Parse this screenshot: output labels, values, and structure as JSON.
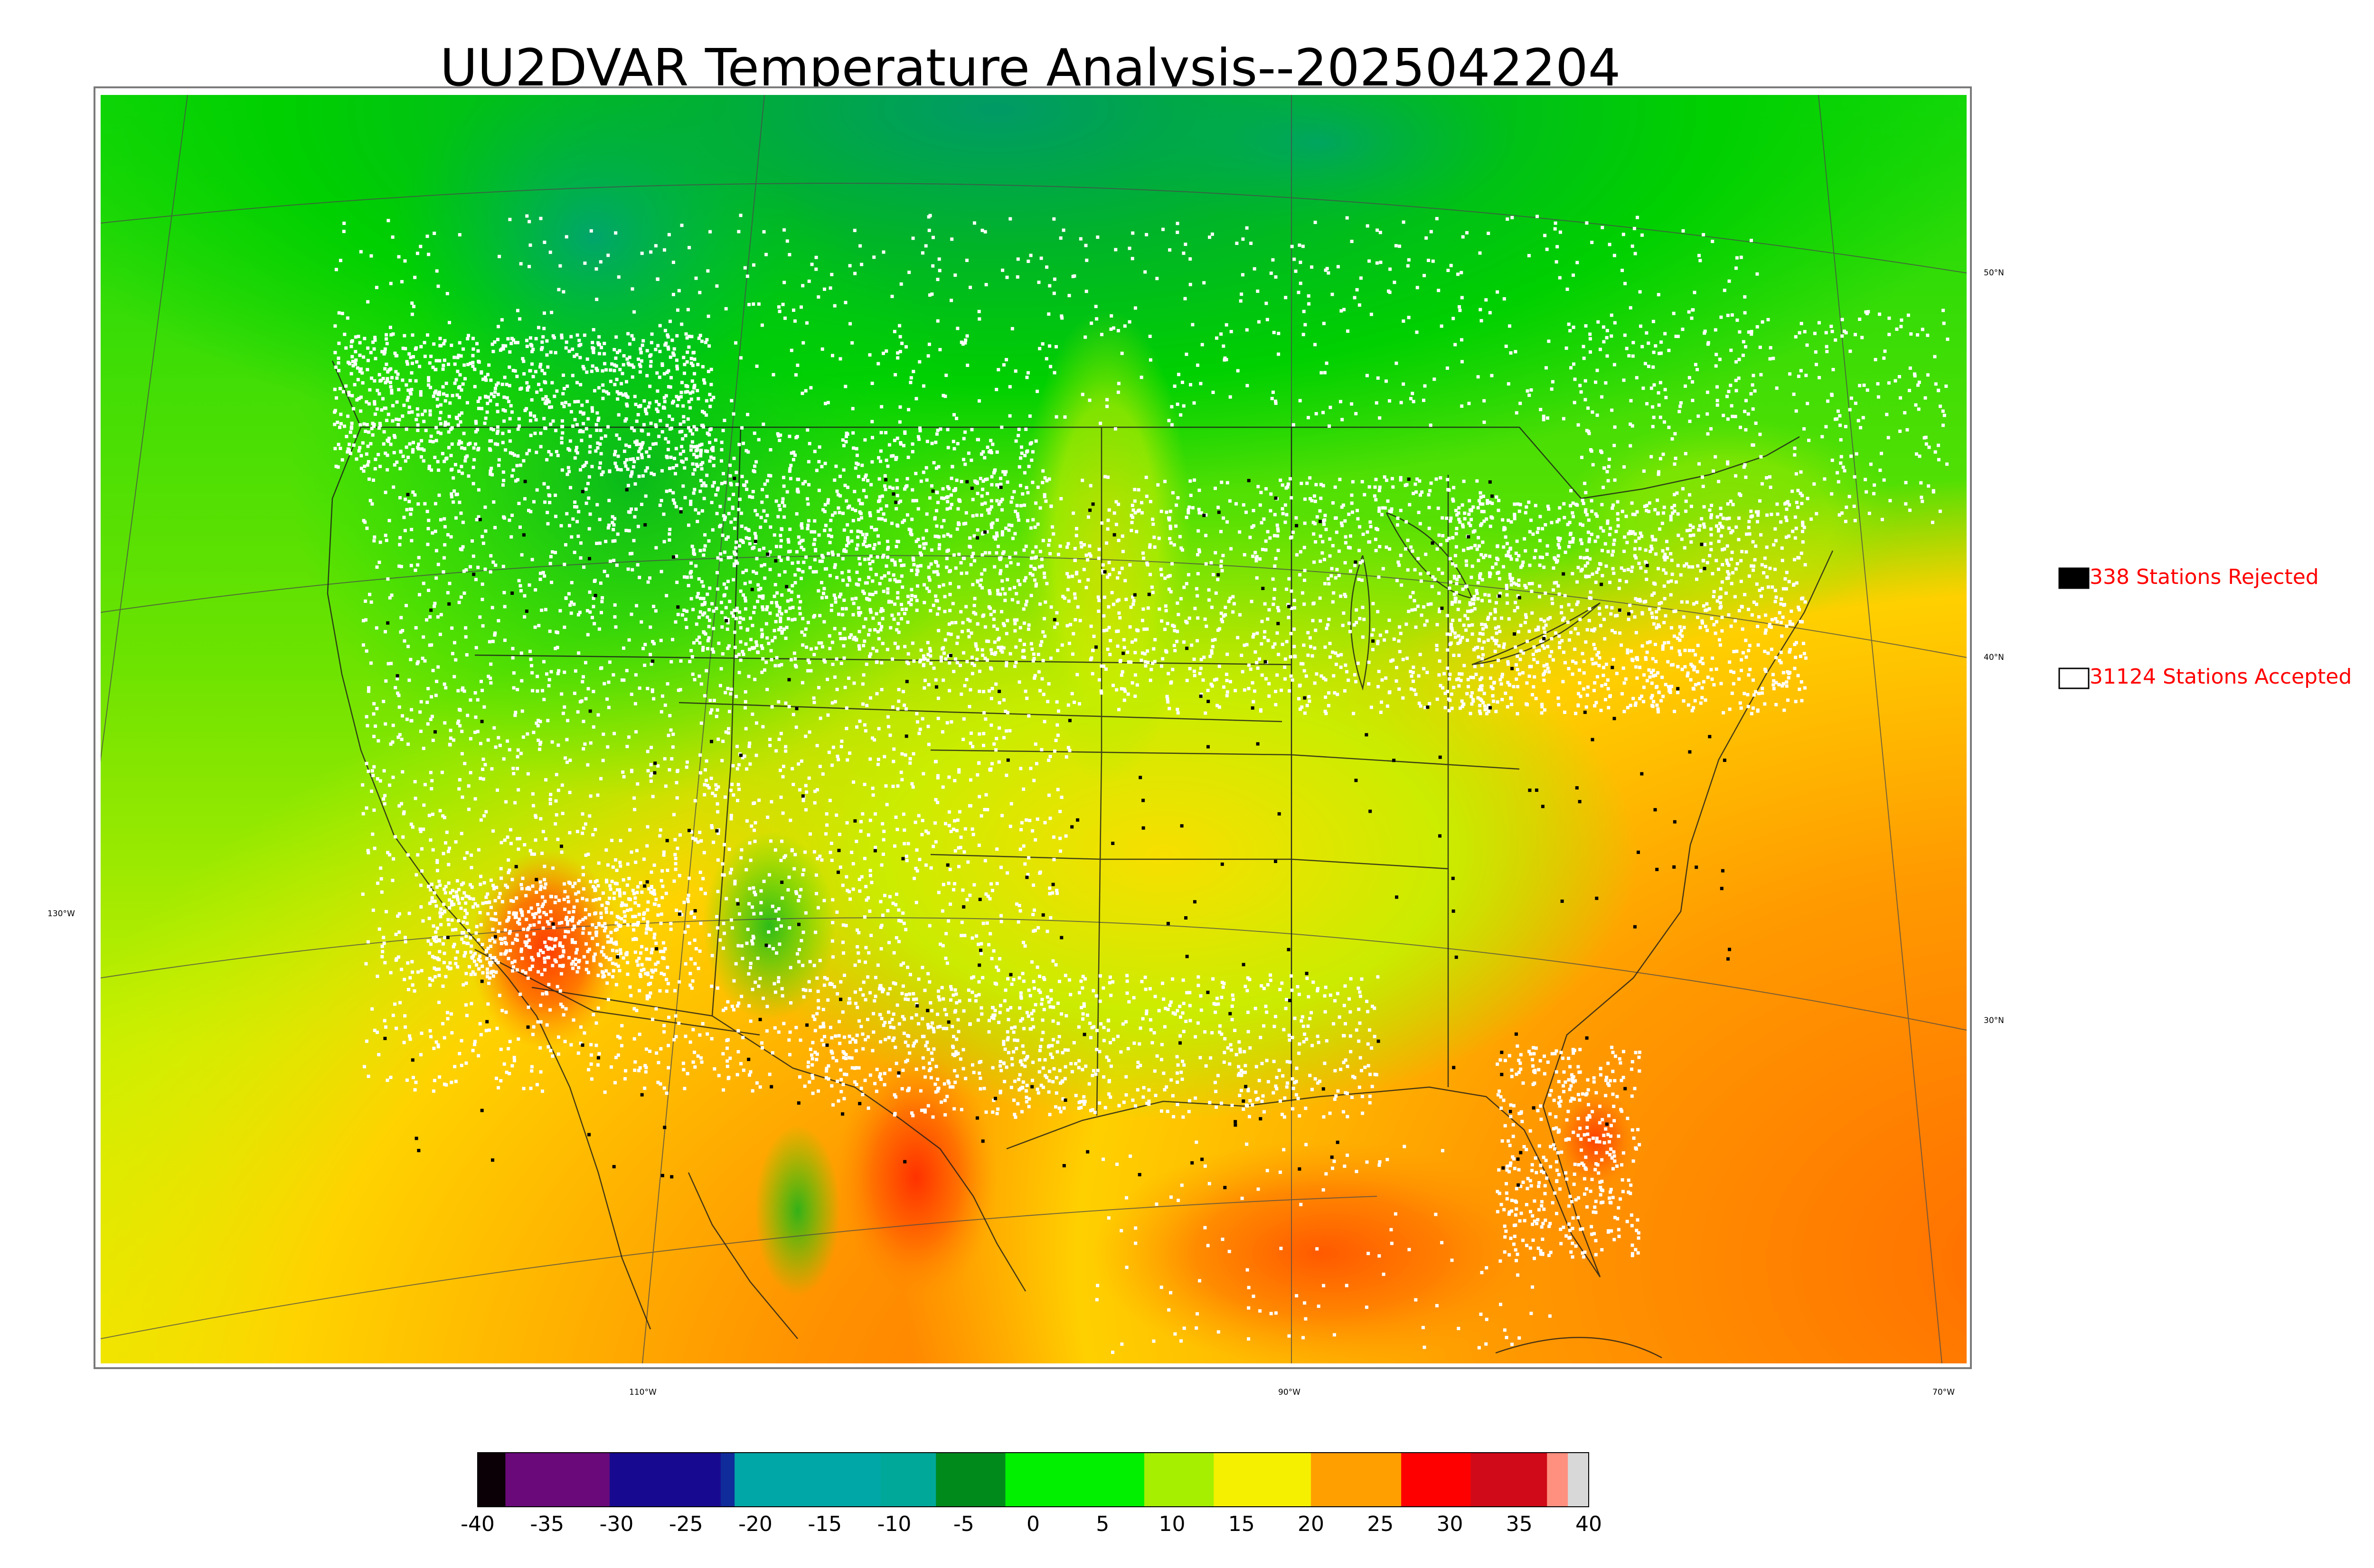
{
  "title": "UU2DVAR Temperature Analysis--2025042204",
  "coordinates": {
    "latitude_labels": [
      "50°N",
      "40°N",
      "30°N"
    ],
    "longitude_labels": [
      "130°W",
      "110°W",
      "90°W",
      "70°W"
    ]
  },
  "legend": {
    "rejected": {
      "label": "338 Stations Rejected",
      "swatch_color": "#000000"
    },
    "accepted": {
      "label": "31124 Stations Accepted",
      "swatch_color": "#ffffff"
    }
  },
  "colorbar": {
    "min": -40,
    "max": 40,
    "ticks": [
      "-40",
      "-35",
      "-30",
      "-25",
      "-20",
      "-15",
      "-10",
      "-5",
      "0",
      "5",
      "10",
      "15",
      "20",
      "25",
      "30",
      "35",
      "40"
    ],
    "colors": [
      {
        "from": -40,
        "to": -38,
        "color": "#0a0006"
      },
      {
        "from": -38,
        "to": -30.5,
        "color": "#6a0a7a"
      },
      {
        "from": -30.5,
        "to": -22.5,
        "color": "#180a90"
      },
      {
        "from": -22.5,
        "to": -21.5,
        "color": "#102b9a"
      },
      {
        "from": -21.5,
        "to": -11,
        "color": "#00a7a7"
      },
      {
        "from": -11,
        "to": -7,
        "color": "#00a89a"
      },
      {
        "from": -7,
        "to": -2,
        "color": "#008a1c"
      },
      {
        "from": -2,
        "to": 8,
        "color": "#00f000"
      },
      {
        "from": 8,
        "to": 13,
        "color": "#a6ef00"
      },
      {
        "from": 13,
        "to": 20,
        "color": "#f5f000"
      },
      {
        "from": 20,
        "to": 26.5,
        "color": "#ffa000"
      },
      {
        "from": 26.5,
        "to": 31.5,
        "color": "#ff0000"
      },
      {
        "from": 31.5,
        "to": 37,
        "color": "#d00a18"
      },
      {
        "from": 37,
        "to": 38.5,
        "color": "#ff9080"
      },
      {
        "from": 38.5,
        "to": 40,
        "color": "#d8d8d8"
      }
    ]
  },
  "colors": {
    "accepted_station": "#ffffff",
    "rejected_station": "#000000",
    "ocean_warm": "#ff9000",
    "cold_north": "#00b400"
  }
}
